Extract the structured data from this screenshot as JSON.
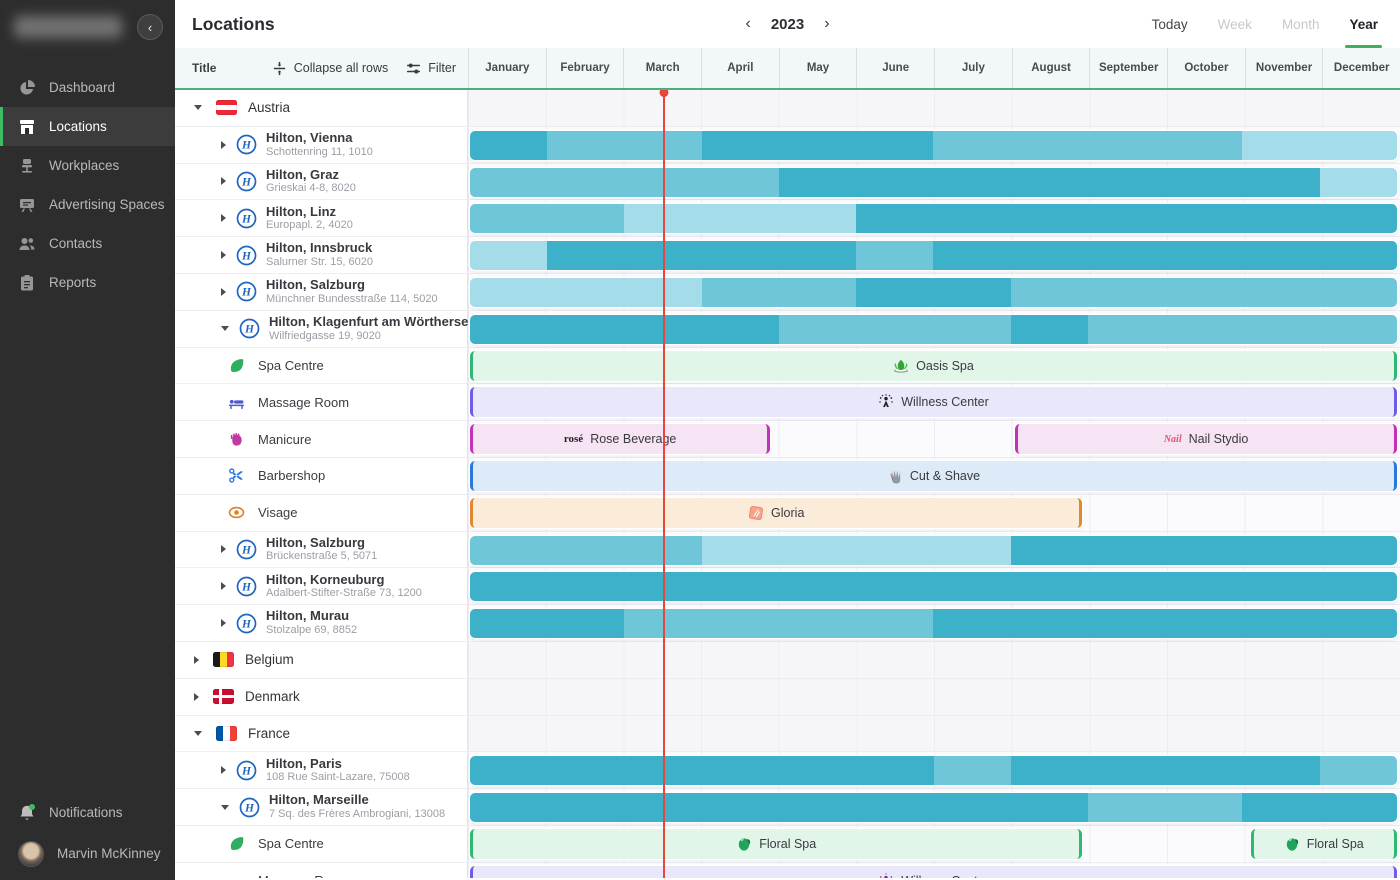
{
  "sidebar": {
    "collapse_glyph": "‹",
    "items": [
      {
        "label": "Dashboard",
        "icon": "dashboard-icon",
        "active": false
      },
      {
        "label": "Locations",
        "icon": "locations-icon",
        "active": true
      },
      {
        "label": "Workplaces",
        "icon": "workplaces-icon",
        "active": false
      },
      {
        "label": "Advertising Spaces",
        "icon": "advertising-icon",
        "active": false
      },
      {
        "label": "Contacts",
        "icon": "contacts-icon",
        "active": false
      },
      {
        "label": "Reports",
        "icon": "reports-icon",
        "active": false
      }
    ],
    "bottom": {
      "notifications_label": "Notifications",
      "user_name": "Marvin McKinney"
    }
  },
  "header": {
    "title": "Locations",
    "year": "2023",
    "views": [
      "Today",
      "Week",
      "Month",
      "Year"
    ],
    "active_view": "Year",
    "dimmed_views": [
      "Week",
      "Month"
    ]
  },
  "table_header": {
    "title_col": "Title",
    "collapse_label": "Collapse all rows",
    "filter_label": "Filter",
    "months": [
      "January",
      "February",
      "March",
      "April",
      "May",
      "June",
      "July",
      "August",
      "September",
      "October",
      "November",
      "December"
    ]
  },
  "timeline": {
    "now_month_position": 2.51,
    "months_total": 12
  },
  "colors": {
    "accent_green": "#3fae5f",
    "header_underline_green": "#4caf7d",
    "now_line_red": "#e8453c",
    "shades": {
      "dark": "#3db1c9",
      "medium": "#6fc6d8",
      "light": "#a4dce9"
    },
    "services": {
      "green": {
        "fill": "#e1f5e9",
        "border": "#2eb873"
      },
      "lavender": {
        "fill": "#e9e7fa",
        "border": "#6c5ce7"
      },
      "pink": {
        "fill": "#f6e3f4",
        "border": "#c032b8"
      },
      "blue": {
        "fill": "#ddeaf7",
        "border": "#2979d9"
      },
      "orange": {
        "fill": "#faecd9",
        "border": "#e08a2f"
      }
    },
    "service_icons": {
      "leaf": "#2fae5f",
      "massage": "#4a5bd0",
      "manicure": "#c03aa0",
      "scissors": "#2b7de0",
      "eye": "#d9821f"
    }
  },
  "rows": [
    {
      "type": "country",
      "caret": "down",
      "flag": "austria",
      "label": "Austria"
    },
    {
      "type": "hotel",
      "caret": "right",
      "name": "Hilton, Vienna",
      "address": "Schottenring 11, 1010",
      "segments": [
        {
          "shade": "dark",
          "from": 0,
          "to": 1
        },
        {
          "shade": "medium",
          "from": 1,
          "to": 3
        },
        {
          "shade": "dark",
          "from": 3,
          "to": 6
        },
        {
          "shade": "medium",
          "from": 6,
          "to": 10
        },
        {
          "shade": "light",
          "from": 10,
          "to": 12
        }
      ]
    },
    {
      "type": "hotel",
      "caret": "right",
      "name": "Hilton, Graz",
      "address": "Grieskai 4-8, 8020",
      "segments": [
        {
          "shade": "medium",
          "from": 0,
          "to": 4
        },
        {
          "shade": "dark",
          "from": 4,
          "to": 11
        },
        {
          "shade": "light",
          "from": 11,
          "to": 12
        }
      ]
    },
    {
      "type": "hotel",
      "caret": "right",
      "name": "Hilton, Linz",
      "address": "Europapl. 2, 4020",
      "segments": [
        {
          "shade": "medium",
          "from": 0,
          "to": 2
        },
        {
          "shade": "light",
          "from": 2,
          "to": 5
        },
        {
          "shade": "dark",
          "from": 5,
          "to": 12
        }
      ]
    },
    {
      "type": "hotel",
      "caret": "right",
      "name": "Hilton, Innsbruck",
      "address": "Salurner Str. 15, 6020",
      "segments": [
        {
          "shade": "light",
          "from": 0,
          "to": 1
        },
        {
          "shade": "dark",
          "from": 1,
          "to": 5
        },
        {
          "shade": "medium",
          "from": 5,
          "to": 6
        },
        {
          "shade": "dark",
          "from": 6,
          "to": 12
        }
      ]
    },
    {
      "type": "hotel",
      "caret": "right",
      "name": "Hilton, Salzburg",
      "address": "Münchner Bundesstraße 114, 5020",
      "segments": [
        {
          "shade": "light",
          "from": 0,
          "to": 3
        },
        {
          "shade": "medium",
          "from": 3,
          "to": 5
        },
        {
          "shade": "dark",
          "from": 5,
          "to": 7
        },
        {
          "shade": "medium",
          "from": 7,
          "to": 12
        }
      ]
    },
    {
      "type": "hotel",
      "caret": "down",
      "name": "Hilton,  Klagenfurt am Wörthersee",
      "address": "Wilfriedgasse 19, 9020",
      "segments": [
        {
          "shade": "dark",
          "from": 0,
          "to": 4
        },
        {
          "shade": "medium",
          "from": 4,
          "to": 7
        },
        {
          "shade": "dark",
          "from": 7,
          "to": 8
        },
        {
          "shade": "medium",
          "from": 8,
          "to": 12
        }
      ]
    },
    {
      "type": "service",
      "icon": "leaf",
      "label": "Spa Centre",
      "bars": [
        {
          "color": "green",
          "from": 0,
          "to": 12,
          "label": "Oasis Spa",
          "badge": "lotus"
        }
      ]
    },
    {
      "type": "service",
      "icon": "massage",
      "label": "Massage Room",
      "bars": [
        {
          "color": "lavender",
          "from": 0,
          "to": 12,
          "label": "Willness Center",
          "badge": "sparkle"
        }
      ]
    },
    {
      "type": "service",
      "icon": "manicure",
      "label": "Manicure",
      "bars": [
        {
          "color": "pink",
          "from": 0,
          "to": 3.93,
          "label": "Rose Beverage",
          "badge": "rose"
        },
        {
          "color": "pink",
          "from": 7.02,
          "to": 12,
          "label": "Nail Stydio",
          "badge": "nail"
        }
      ]
    },
    {
      "type": "service",
      "icon": "scissors",
      "label": "Barbershop",
      "bars": [
        {
          "color": "blue",
          "from": 0,
          "to": 12,
          "label": "Cut & Shave",
          "badge": "shave"
        }
      ]
    },
    {
      "type": "service",
      "icon": "eye",
      "label": "Visage",
      "bars": [
        {
          "color": "orange",
          "from": 0,
          "to": 7.95,
          "label": "Gloria",
          "badge": "gloria"
        }
      ]
    },
    {
      "type": "hotel",
      "caret": "right",
      "name": "Hilton, Salzburg",
      "address": "Brückenstraße 5, 5071",
      "segments": [
        {
          "shade": "medium",
          "from": 0,
          "to": 3
        },
        {
          "shade": "light",
          "from": 3,
          "to": 7
        },
        {
          "shade": "dark",
          "from": 7,
          "to": 12
        }
      ]
    },
    {
      "type": "hotel",
      "caret": "right",
      "name": "Hilton, Korneuburg",
      "address": "Adalbert-Stifter-Straße 73, 1200",
      "segments": [
        {
          "shade": "dark",
          "from": 0,
          "to": 12
        }
      ]
    },
    {
      "type": "hotel",
      "caret": "right",
      "name": "Hilton, Murau",
      "address": "Stolzalpe 69, 8852",
      "segments": [
        {
          "shade": "dark",
          "from": 0,
          "to": 2
        },
        {
          "shade": "medium",
          "from": 2,
          "to": 6
        },
        {
          "shade": "dark",
          "from": 6,
          "to": 12
        }
      ]
    },
    {
      "type": "country",
      "caret": "right",
      "flag": "belgium",
      "label": "Belgium"
    },
    {
      "type": "country",
      "caret": "right",
      "flag": "denmark",
      "label": "Denmark"
    },
    {
      "type": "country",
      "caret": "down",
      "flag": "france",
      "label": "France"
    },
    {
      "type": "hotel",
      "caret": "right",
      "name": "Hilton, Paris",
      "address": "108 Rue Saint-Lazare, 75008",
      "segments": [
        {
          "shade": "dark",
          "from": 0,
          "to": 6
        },
        {
          "shade": "medium",
          "from": 6,
          "to": 7
        },
        {
          "shade": "dark",
          "from": 7,
          "to": 11
        },
        {
          "shade": "medium",
          "from": 11,
          "to": 12
        }
      ]
    },
    {
      "type": "hotel",
      "caret": "down",
      "name": "Hilton,  Marseille",
      "address": "7 Sq. des Frères Ambrogiani, 13008",
      "segments": [
        {
          "shade": "dark",
          "from": 0,
          "to": 8
        },
        {
          "shade": "medium",
          "from": 8,
          "to": 10
        },
        {
          "shade": "dark",
          "from": 10,
          "to": 12
        }
      ]
    },
    {
      "type": "service",
      "icon": "leaf",
      "label": "Spa Centre",
      "bars": [
        {
          "color": "green",
          "from": 0,
          "to": 7.95,
          "label": "Floral Spa",
          "badge": "floral"
        },
        {
          "color": "green",
          "from": 10.05,
          "to": 12,
          "label": "Floral Spa",
          "badge": "floral"
        }
      ]
    },
    {
      "type": "service",
      "icon": "massage",
      "label": "Massage Room",
      "bars": [
        {
          "color": "lavender",
          "from": 0,
          "to": 12,
          "label": "Willness Center",
          "badge": "sparkle-purple"
        }
      ]
    }
  ]
}
